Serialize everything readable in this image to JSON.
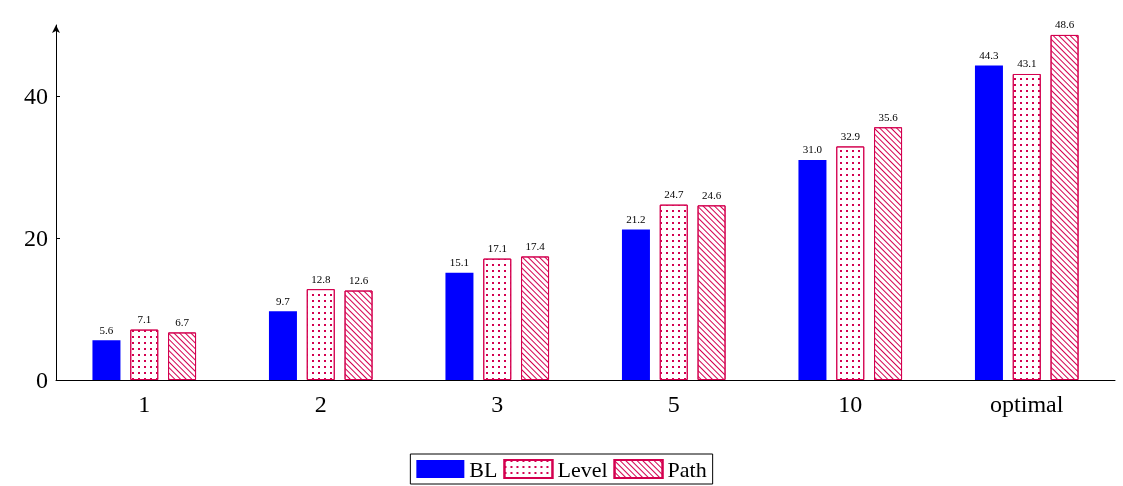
{
  "chart_data": {
    "type": "bar",
    "categories": [
      "1",
      "2",
      "3",
      "5",
      "10",
      "optimal"
    ],
    "series": [
      {
        "name": "BL",
        "color": "#0000ff",
        "values": [
          5.6,
          9.7,
          15.1,
          21.2,
          31.0,
          44.3
        ],
        "value_labels": [
          "5.6",
          "9.7",
          "15.1",
          "21.2",
          "31.0",
          "44.3"
        ]
      },
      {
        "name": "Level",
        "color": "#d4004f",
        "values": [
          7.1,
          12.8,
          17.1,
          24.7,
          32.9,
          43.1
        ]
      },
      {
        "name": "Path",
        "color": "#d4004f",
        "values": [
          6.7,
          12.6,
          17.4,
          24.6,
          35.6,
          48.6
        ]
      }
    ],
    "ylim": [
      0,
      50
    ],
    "yticks": [
      0,
      20,
      40
    ],
    "grid": false,
    "legend": "bottom",
    "data_labels": true
  }
}
